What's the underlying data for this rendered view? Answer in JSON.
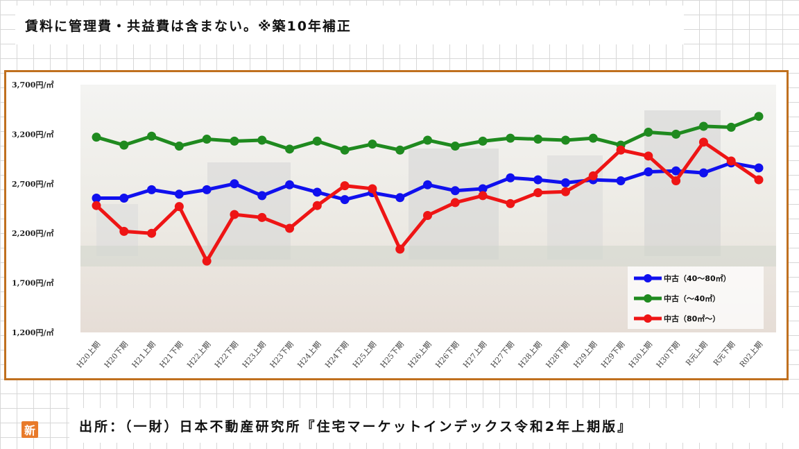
{
  "header_note": "賃料に管理費・共益費は含まない。※築10年補正",
  "source_note": "出所：（一財）日本不動産研究所『住宅マーケットインデックス令和2年上期版』",
  "badge": "新",
  "chart_data": {
    "type": "line",
    "title": "",
    "xlabel": "",
    "ylabel": "",
    "ylim": [
      1200,
      3700
    ],
    "yticks": [
      1200,
      1700,
      2200,
      2700,
      3200,
      3700
    ],
    "ytick_labels": [
      "1,200円/㎡",
      "1,700円/㎡",
      "2,200円/㎡",
      "2,700円/㎡",
      "3,200円/㎡",
      "3,700円/㎡"
    ],
    "grid": false,
    "legend_position": "bottom-right",
    "categories": [
      "H20上期",
      "H20下期",
      "H21上期",
      "H21下期",
      "H22上期",
      "H22下期",
      "H23上期",
      "H23下期",
      "H24上期",
      "H24下期",
      "H25上期",
      "H25下期",
      "H26上期",
      "H26下期",
      "H27上期",
      "H27下期",
      "H28上期",
      "H28下期",
      "H29上期",
      "H29下期",
      "H30上期",
      "H30下期",
      "R元上期",
      "R元下期",
      "R02上期"
    ],
    "series": [
      {
        "name": "中古（40～80㎡）",
        "color": "#1010ee",
        "values": [
          2555,
          2555,
          2640,
          2595,
          2640,
          2700,
          2580,
          2690,
          2615,
          2540,
          2610,
          2560,
          2690,
          2630,
          2650,
          2760,
          2740,
          2710,
          2740,
          2730,
          2820,
          2830,
          2810,
          2910,
          2860
        ]
      },
      {
        "name": "中古（～40㎡）",
        "color": "#1f8a1f",
        "values": [
          3170,
          3090,
          3180,
          3080,
          3150,
          3130,
          3140,
          3050,
          3130,
          3040,
          3100,
          3040,
          3140,
          3080,
          3130,
          3160,
          3150,
          3140,
          3160,
          3090,
          3220,
          3200,
          3280,
          3270,
          3380
        ]
      },
      {
        "name": "中古（80㎡～）",
        "color": "#ee1515",
        "values": [
          2480,
          2220,
          2200,
          2470,
          1920,
          2390,
          2360,
          2250,
          2480,
          2680,
          2650,
          2040,
          2380,
          2510,
          2580,
          2500,
          2610,
          2620,
          2780,
          3040,
          2980,
          2730,
          3120,
          2930,
          2740
        ]
      }
    ]
  }
}
